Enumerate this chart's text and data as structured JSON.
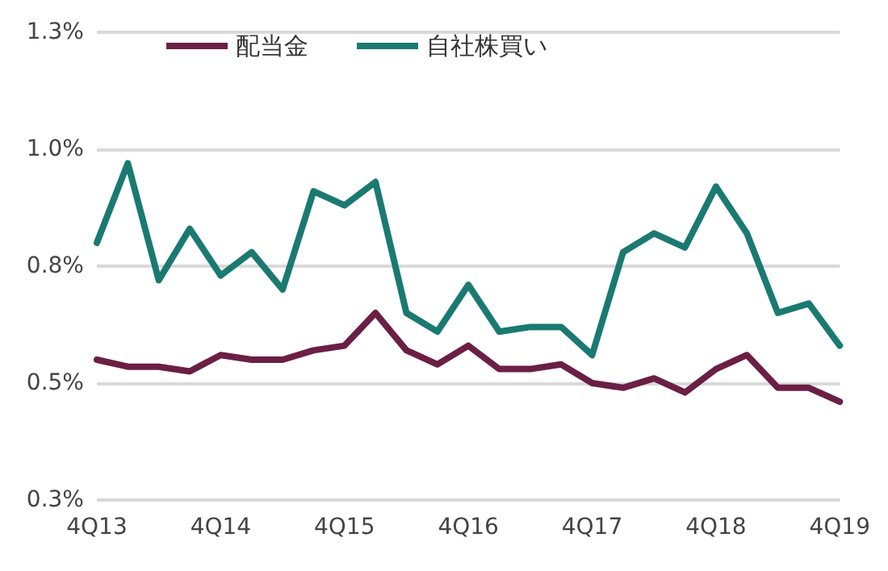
{
  "chart_data": {
    "type": "line",
    "categories": [
      "4Q13",
      null,
      null,
      null,
      "4Q14",
      null,
      null,
      null,
      "4Q15",
      null,
      null,
      null,
      "4Q16",
      null,
      null,
      null,
      "4Q17",
      null,
      null,
      null,
      "4Q18",
      null,
      null,
      null,
      "4Q19"
    ],
    "series": [
      {
        "name": "配当金",
        "color": "#6b1f45",
        "values": [
          0.55,
          0.535,
          0.535,
          0.525,
          0.56,
          0.55,
          0.55,
          0.57,
          0.58,
          0.65,
          0.57,
          0.54,
          0.58,
          0.53,
          0.53,
          0.54,
          0.5,
          0.49,
          0.51,
          0.48,
          0.53,
          0.56,
          0.49,
          0.49,
          0.46
        ]
      },
      {
        "name": "自社株買い",
        "color": "#1a7a72",
        "values": [
          0.8,
          0.97,
          0.72,
          0.83,
          0.73,
          0.78,
          0.7,
          0.91,
          0.88,
          0.93,
          0.65,
          0.61,
          0.71,
          0.61,
          0.62,
          0.62,
          0.56,
          0.78,
          0.82,
          0.79,
          0.92,
          0.82,
          0.65,
          0.67,
          0.58
        ]
      }
    ],
    "ylim": [
      0.25,
      1.25
    ],
    "yticks": [
      {
        "value": 0.25,
        "label": "0.3%"
      },
      {
        "value": 0.5,
        "label": "0.5%"
      },
      {
        "value": 0.75,
        "label": "0.8%"
      },
      {
        "value": 1.0,
        "label": "1.0%"
      },
      {
        "value": 1.25,
        "label": "1.3%"
      }
    ],
    "grid": "y",
    "legend": "top left",
    "marker": "none",
    "line_style": "solid"
  }
}
